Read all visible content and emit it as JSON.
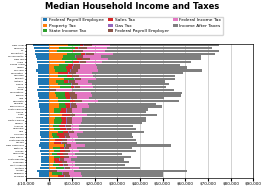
{
  "chart_data": {
    "type": "bar",
    "orientation": "horizontal",
    "stacked": true,
    "title": "Median Household Income and Taxes",
    "categories": [
      "New Jersey",
      "California",
      "DC",
      "Connecticut",
      "Massachusetts",
      "New York",
      "Illinois",
      "Rhode Island",
      "Hawaii",
      "Maryland",
      "Washington",
      "Nebraska",
      "Vermont",
      "Australia",
      "Oregon",
      "Maine",
      "Alaska",
      "Washington2",
      "Virginia",
      "Iowa",
      "Minnesota",
      "Michigan",
      "Pennsylvania",
      "South Carolina",
      "Arizona",
      "Texas",
      "Indiana",
      "North Carolina",
      "Missouri",
      "Arkansas",
      "Oklahoma",
      "Ohio",
      "Louisiana",
      "New Mexico",
      "South Dakota",
      "Nevada",
      "New Hampshire",
      "Kentucky",
      "Indiana2",
      "Mississippi",
      "Idaho",
      "South Dakota2",
      "Tennessee",
      "West Virginia",
      "Montana",
      "Alaska2",
      "Delaware",
      "Wyoming"
    ],
    "series": [
      {
        "name": "Federal Payroll Employee",
        "values": [
          -7000,
          -6500,
          -6000,
          -6000,
          -5800,
          -5500,
          -5200,
          -5000,
          -5000,
          -5800,
          -5000,
          -4800,
          -4800,
          -4700,
          -4700,
          -4500,
          -5200,
          -4800,
          -4800,
          -4500,
          -5000,
          -4300,
          -4500,
          -4200,
          -4200,
          -4200,
          -4000,
          -4200,
          -4000,
          -3800,
          -3800,
          -4000,
          -3800,
          -3700,
          -3800,
          -4000,
          -4500,
          -3700,
          -3800,
          -3500,
          -3700,
          -3600,
          -3700,
          -3600,
          -3800,
          -5500,
          -4500,
          -4500
        ]
      },
      {
        "name": "Property Tax",
        "values": [
          8500,
          4500,
          3500,
          8000,
          6000,
          5500,
          7000,
          4500,
          2000,
          2800,
          4000,
          4000,
          6500,
          3000,
          3800,
          5000,
          0,
          2800,
          3200,
          3800,
          3800,
          4200,
          4500,
          2200,
          2200,
          5500,
          2800,
          2200,
          2200,
          1800,
          2200,
          3800,
          1300,
          1800,
          2800,
          2200,
          6500,
          1800,
          2200,
          1300,
          2200,
          2200,
          2200,
          1800,
          3200,
          0,
          1300,
          3800
        ]
      },
      {
        "name": "State Income Tax",
        "values": [
          5000,
          7000,
          7000,
          6000,
          5500,
          7000,
          3500,
          4000,
          5500,
          5000,
          0,
          4000,
          4500,
          3500,
          6000,
          4500,
          0,
          4000,
          4000,
          3500,
          5500,
          3000,
          3000,
          3000,
          2500,
          0,
          2500,
          3500,
          3000,
          2500,
          2500,
          2500,
          2000,
          2500,
          0,
          0,
          500,
          3000,
          2500,
          2000,
          2500,
          0,
          500,
          2500,
          3500,
          0,
          4500,
          0
        ]
      },
      {
        "name": "Sales Tax",
        "values": [
          1500,
          1200,
          800,
          2000,
          0,
          1800,
          2500,
          2000,
          2500,
          1500,
          4500,
          2000,
          0,
          1800,
          0,
          1500,
          0,
          1800,
          1800,
          2000,
          2000,
          2000,
          1800,
          2200,
          2800,
          3500,
          2200,
          1800,
          2200,
          2800,
          2800,
          2200,
          3200,
          2800,
          2800,
          3200,
          0,
          1800,
          2200,
          2800,
          1800,
          2200,
          2800,
          1800,
          0,
          0,
          0,
          2800
        ]
      },
      {
        "name": "Gas Tax",
        "values": [
          400,
          500,
          300,
          400,
          350,
          400,
          450,
          350,
          500,
          300,
          450,
          300,
          300,
          300,
          280,
          320,
          100,
          320,
          380,
          280,
          320,
          320,
          380,
          280,
          230,
          320,
          320,
          320,
          280,
          280,
          230,
          280,
          230,
          230,
          230,
          280,
          280,
          320,
          280,
          230,
          280,
          230,
          230,
          280,
          230,
          100,
          320,
          280
        ]
      },
      {
        "name": "Federal Payroll Employer",
        "values": [
          3500,
          3400,
          3200,
          3300,
          3200,
          3100,
          3000,
          2900,
          2900,
          3300,
          2900,
          2700,
          2700,
          2600,
          2600,
          2500,
          3000,
          2700,
          2700,
          2500,
          2800,
          2400,
          2500,
          2300,
          2300,
          2300,
          2200,
          2300,
          2200,
          2100,
          2100,
          2200,
          2100,
          2000,
          2100,
          2200,
          2500,
          2000,
          2100,
          1900,
          2000,
          1950,
          2000,
          1950,
          2100,
          3200,
          2500,
          2500
        ]
      },
      {
        "name": "Federal Income Tax",
        "values": [
          8000,
          9000,
          10000,
          8500,
          8000,
          8000,
          7000,
          7000,
          7500,
          8500,
          7000,
          6500,
          6500,
          6000,
          6000,
          5500,
          7000,
          7000,
          7000,
          5500,
          7000,
          5000,
          5500,
          4500,
          4500,
          5000,
          4500,
          4500,
          4000,
          3500,
          3500,
          4000,
          3500,
          3500,
          3500,
          4000,
          6000,
          3500,
          3800,
          3000,
          3500,
          3200,
          3500,
          3200,
          4000,
          7500,
          5500,
          5000
        ]
      },
      {
        "name": "Income After Taxes",
        "values": [
          48000,
          46000,
          50000,
          45000,
          44000,
          41000,
          39000,
          37000,
          40000,
          46000,
          40000,
          36000,
          35000,
          34000,
          34000,
          32000,
          45000,
          40000,
          39000,
          33000,
          36000,
          30000,
          32000,
          29000,
          28000,
          31000,
          28000,
          28000,
          27000,
          24000,
          25000,
          27000,
          24000,
          24000,
          27000,
          27000,
          38000,
          24000,
          25000,
          21000,
          24000,
          23000,
          24000,
          22000,
          27000,
          50000,
          36000,
          36000
        ]
      }
    ],
    "xlim": [
      -10000,
      90000
    ],
    "xticks": [
      {
        "value": -10000,
        "label": "-$10,000"
      },
      {
        "value": 0,
        "label": "$0"
      },
      {
        "value": 10000,
        "label": "$10,000"
      },
      {
        "value": 20000,
        "label": "$20,000"
      },
      {
        "value": 30000,
        "label": "$30,000"
      },
      {
        "value": 40000,
        "label": "$40,000"
      },
      {
        "value": 50000,
        "label": "$50,000"
      },
      {
        "value": 60000,
        "label": "$60,000"
      },
      {
        "value": 70000,
        "label": "$70,000"
      },
      {
        "value": 80000,
        "label": "$80,000"
      },
      {
        "value": 90000,
        "label": "$90,000"
      }
    ],
    "grid": true,
    "legend": "upper center"
  }
}
